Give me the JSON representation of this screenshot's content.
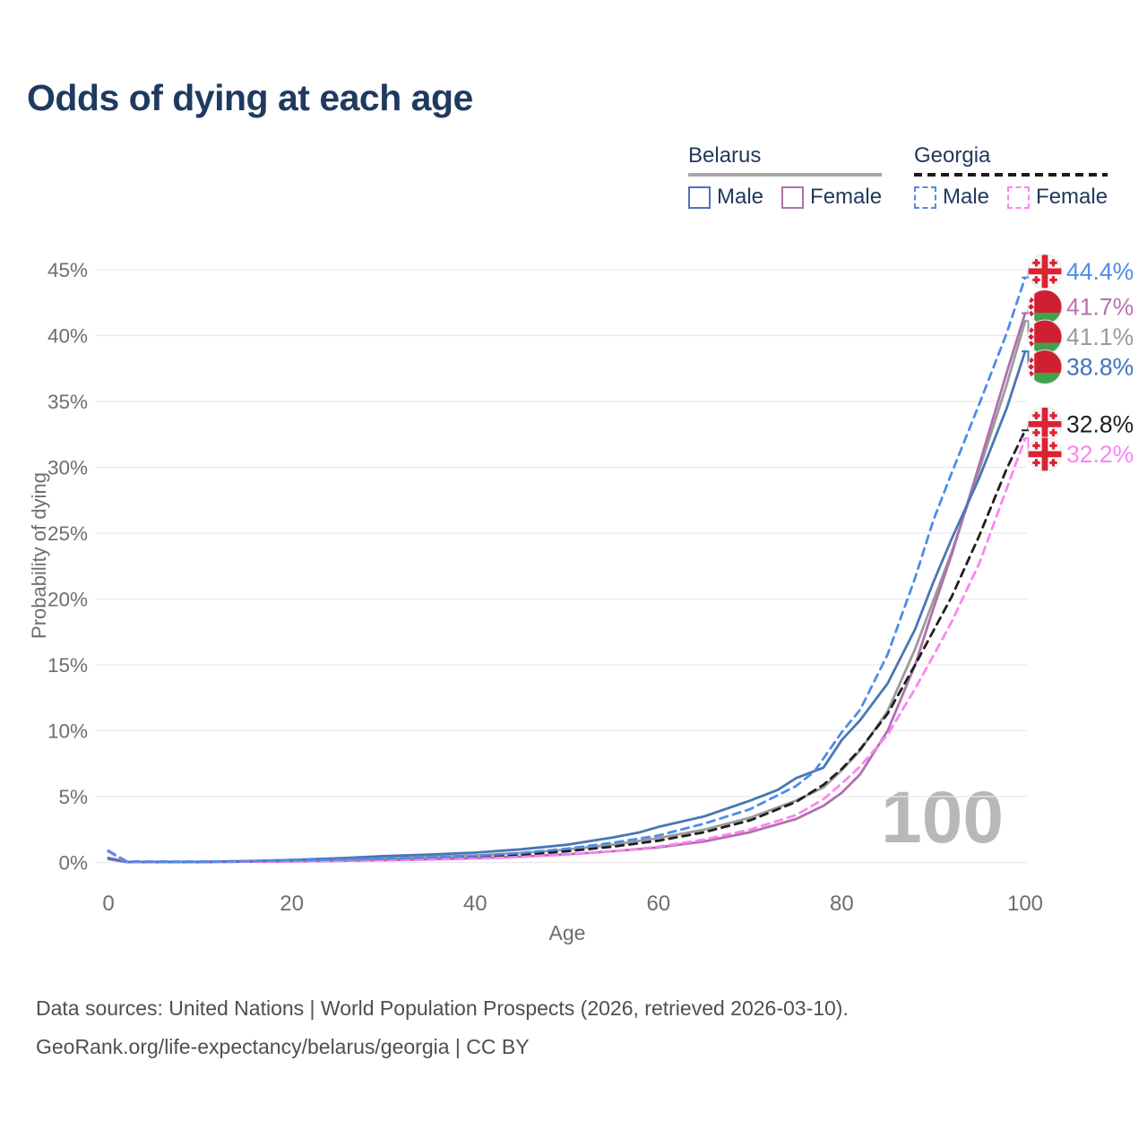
{
  "title": "Odds of dying at each age",
  "legend": {
    "groups": [
      {
        "label": "Belarus",
        "line_style": "solid",
        "underline_color": "#a8a8a8",
        "items": [
          {
            "label": "Male",
            "color": "#4a76b5",
            "dashed": false
          },
          {
            "label": "Female",
            "color": "#b06fae",
            "dashed": false
          }
        ]
      },
      {
        "label": "Georgia",
        "line_style": "dashed",
        "underline_color": "#1a1a1a",
        "items": [
          {
            "label": "Male",
            "color": "#4d8de8",
            "dashed": true
          },
          {
            "label": "Female",
            "color": "#fb84f3",
            "dashed": true
          }
        ]
      }
    ]
  },
  "chart_data": {
    "type": "line",
    "title": "Odds of dying at each age",
    "xlabel": "Age",
    "ylabel": "Probability of dying",
    "xlim": [
      0,
      100
    ],
    "ylim": [
      0,
      45
    ],
    "xticks": [
      "0",
      "20",
      "40",
      "60",
      "80",
      "100"
    ],
    "yticks": [
      "0%",
      "5%",
      "10%",
      "15%",
      "20%",
      "25%",
      "30%",
      "35%",
      "40%",
      "45%"
    ],
    "grid": "horizontal",
    "legend_position": "top-right",
    "watermark": "100",
    "series": [
      {
        "id": "belarus-total",
        "name": "Belarus",
        "country": "Belarus",
        "sex": "both",
        "color": "#9b9b9b",
        "label_color": "#9a9a9a",
        "dashed": false,
        "end_label": "41.1%",
        "flag": "belarus",
        "points": [
          [
            0,
            0.3
          ],
          [
            2,
            0.04
          ],
          [
            10,
            0.04
          ],
          [
            15,
            0.08
          ],
          [
            20,
            0.14
          ],
          [
            25,
            0.21
          ],
          [
            30,
            0.32
          ],
          [
            35,
            0.42
          ],
          [
            40,
            0.53
          ],
          [
            45,
            0.72
          ],
          [
            50,
            0.98
          ],
          [
            55,
            1.35
          ],
          [
            60,
            1.85
          ],
          [
            65,
            2.5
          ],
          [
            70,
            3.4
          ],
          [
            75,
            4.7
          ],
          [
            78,
            5.7
          ],
          [
            80,
            7.0
          ],
          [
            82,
            8.5
          ],
          [
            85,
            11.5
          ],
          [
            88,
            16.2
          ],
          [
            90,
            19.9
          ],
          [
            92,
            23.6
          ],
          [
            95,
            29.8
          ],
          [
            98,
            36.3
          ],
          [
            100,
            41.1
          ]
        ]
      },
      {
        "id": "belarus-female",
        "name": "Belarus Female",
        "country": "Belarus",
        "sex": "female",
        "color": "#b06fae",
        "label_color": "#b573ae",
        "dashed": false,
        "end_label": "41.7%",
        "flag": "belarus",
        "points": [
          [
            0,
            0.25
          ],
          [
            2,
            0.03
          ],
          [
            10,
            0.03
          ],
          [
            15,
            0.06
          ],
          [
            20,
            0.08
          ],
          [
            25,
            0.12
          ],
          [
            30,
            0.17
          ],
          [
            35,
            0.24
          ],
          [
            40,
            0.32
          ],
          [
            45,
            0.45
          ],
          [
            50,
            0.62
          ],
          [
            55,
            0.85
          ],
          [
            60,
            1.15
          ],
          [
            65,
            1.6
          ],
          [
            70,
            2.3
          ],
          [
            75,
            3.3
          ],
          [
            78,
            4.3
          ],
          [
            80,
            5.3
          ],
          [
            82,
            6.7
          ],
          [
            85,
            10.0
          ],
          [
            88,
            15.0
          ],
          [
            90,
            19.3
          ],
          [
            92,
            23.4
          ],
          [
            95,
            30.2
          ],
          [
            98,
            37.2
          ],
          [
            100,
            41.7
          ]
        ]
      },
      {
        "id": "belarus-male",
        "name": "Belarus Male",
        "country": "Belarus",
        "sex": "male",
        "color": "#4a76b5",
        "label_color": "#4472bd",
        "dashed": false,
        "end_label": "38.8%",
        "flag": "belarus",
        "points": [
          [
            0,
            0.35
          ],
          [
            2,
            0.04
          ],
          [
            10,
            0.05
          ],
          [
            15,
            0.1
          ],
          [
            20,
            0.2
          ],
          [
            25,
            0.32
          ],
          [
            30,
            0.48
          ],
          [
            35,
            0.6
          ],
          [
            40,
            0.75
          ],
          [
            45,
            1.0
          ],
          [
            50,
            1.35
          ],
          [
            55,
            1.9
          ],
          [
            58,
            2.3
          ],
          [
            60,
            2.7
          ],
          [
            65,
            3.5
          ],
          [
            70,
            4.7
          ],
          [
            73,
            5.5
          ],
          [
            75,
            6.4
          ],
          [
            78,
            7.2
          ],
          [
            80,
            9.3
          ],
          [
            82,
            10.8
          ],
          [
            85,
            13.6
          ],
          [
            88,
            17.7
          ],
          [
            90,
            21.3
          ],
          [
            92,
            24.6
          ],
          [
            95,
            29.2
          ],
          [
            98,
            34.5
          ],
          [
            100,
            38.8
          ]
        ]
      },
      {
        "id": "georgia-total",
        "name": "Georgia",
        "country": "Georgia",
        "sex": "both",
        "color": "#1f1f1f",
        "label_color": "#1f1f1f",
        "dashed": true,
        "end_label": "32.8%",
        "flag": "georgia",
        "points": [
          [
            0,
            0.85
          ],
          [
            2,
            0.06
          ],
          [
            10,
            0.05
          ],
          [
            15,
            0.08
          ],
          [
            20,
            0.13
          ],
          [
            25,
            0.18
          ],
          [
            30,
            0.24
          ],
          [
            35,
            0.32
          ],
          [
            40,
            0.43
          ],
          [
            45,
            0.6
          ],
          [
            50,
            0.85
          ],
          [
            55,
            1.2
          ],
          [
            60,
            1.65
          ],
          [
            65,
            2.3
          ],
          [
            70,
            3.2
          ],
          [
            75,
            4.6
          ],
          [
            78,
            5.9
          ],
          [
            80,
            7.1
          ],
          [
            82,
            8.6
          ],
          [
            85,
            11.3
          ],
          [
            88,
            15.0
          ],
          [
            90,
            17.6
          ],
          [
            92,
            20.2
          ],
          [
            95,
            24.8
          ],
          [
            98,
            29.9
          ],
          [
            100,
            32.8
          ]
        ]
      },
      {
        "id": "georgia-female",
        "name": "Georgia Female",
        "country": "Georgia",
        "sex": "female",
        "color": "#fb84f3",
        "label_color": "#fb84f3",
        "dashed": true,
        "end_label": "32.2%",
        "flag": "georgia",
        "points": [
          [
            0,
            0.8
          ],
          [
            2,
            0.05
          ],
          [
            10,
            0.04
          ],
          [
            15,
            0.06
          ],
          [
            20,
            0.09
          ],
          [
            25,
            0.12
          ],
          [
            30,
            0.16
          ],
          [
            35,
            0.22
          ],
          [
            40,
            0.3
          ],
          [
            45,
            0.42
          ],
          [
            50,
            0.6
          ],
          [
            55,
            0.85
          ],
          [
            60,
            1.2
          ],
          [
            65,
            1.75
          ],
          [
            70,
            2.5
          ],
          [
            75,
            3.6
          ],
          [
            78,
            4.8
          ],
          [
            80,
            6.0
          ],
          [
            82,
            7.3
          ],
          [
            85,
            9.7
          ],
          [
            88,
            13.2
          ],
          [
            90,
            15.7
          ],
          [
            92,
            18.3
          ],
          [
            95,
            22.7
          ],
          [
            98,
            28.4
          ],
          [
            100,
            32.2
          ]
        ]
      },
      {
        "id": "georgia-male",
        "name": "Georgia Male",
        "country": "Georgia",
        "sex": "male",
        "color": "#4d8de8",
        "label_color": "#4d8de8",
        "dashed": true,
        "end_label": "44.4%",
        "flag": "georgia",
        "points": [
          [
            0,
            0.9
          ],
          [
            2,
            0.07
          ],
          [
            10,
            0.06
          ],
          [
            15,
            0.1
          ],
          [
            20,
            0.16
          ],
          [
            25,
            0.22
          ],
          [
            30,
            0.28
          ],
          [
            35,
            0.38
          ],
          [
            40,
            0.52
          ],
          [
            45,
            0.72
          ],
          [
            50,
            1.05
          ],
          [
            55,
            1.5
          ],
          [
            60,
            2.05
          ],
          [
            65,
            2.95
          ],
          [
            70,
            4.05
          ],
          [
            75,
            5.8
          ],
          [
            77,
            6.9
          ],
          [
            79,
            8.9
          ],
          [
            80,
            9.9
          ],
          [
            82,
            11.6
          ],
          [
            85,
            15.8
          ],
          [
            88,
            21.6
          ],
          [
            90,
            26.0
          ],
          [
            92,
            29.6
          ],
          [
            95,
            34.8
          ],
          [
            98,
            40.2
          ],
          [
            100,
            44.4
          ]
        ]
      }
    ]
  },
  "footer": {
    "line1": "Data sources: United Nations | World Population Prospects (2026, retrieved 2026-03-10).",
    "line2": "GeoRank.org/life-expectancy/belarus/georgia | CC BY"
  }
}
